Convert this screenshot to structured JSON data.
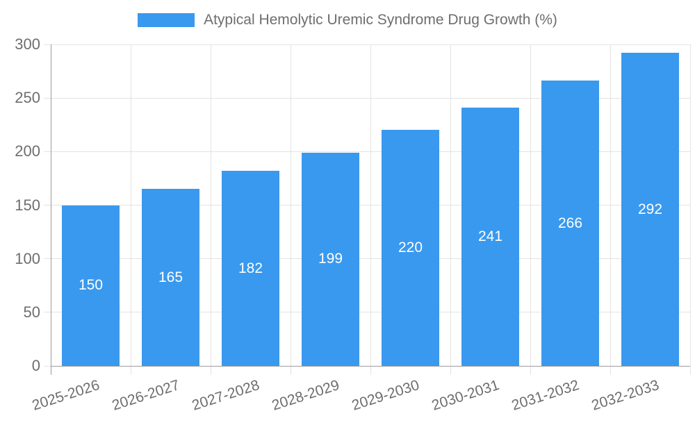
{
  "legend": {
    "label": "Atypical Hemolytic Uremic Syndrome Drug Growth (%)"
  },
  "colors": {
    "bar": "#3999ee",
    "grid": "#e3e3e3",
    "axis": "#9c9c9c",
    "tick_label": "#6e6e6e",
    "value_label": "#ffffff",
    "background": "#ffffff"
  },
  "chart_data": {
    "type": "bar",
    "title": "Atypical Hemolytic Uremic Syndrome Drug Growth (%)",
    "categories": [
      "2025-2026",
      "2026-2027",
      "2027-2028",
      "2028-2029",
      "2029-2030",
      "2030-2031",
      "2031-2032",
      "2032-2033"
    ],
    "values": [
      150,
      165,
      182,
      199,
      220,
      241,
      266,
      292
    ],
    "xlabel": "",
    "ylabel": "",
    "ylim": [
      0,
      300
    ],
    "yticks": [
      0,
      50,
      100,
      150,
      200,
      250,
      300
    ],
    "grid": "on",
    "legend_position": "top",
    "value_labels": "inside-center",
    "x_label_rotation_deg": -18
  }
}
